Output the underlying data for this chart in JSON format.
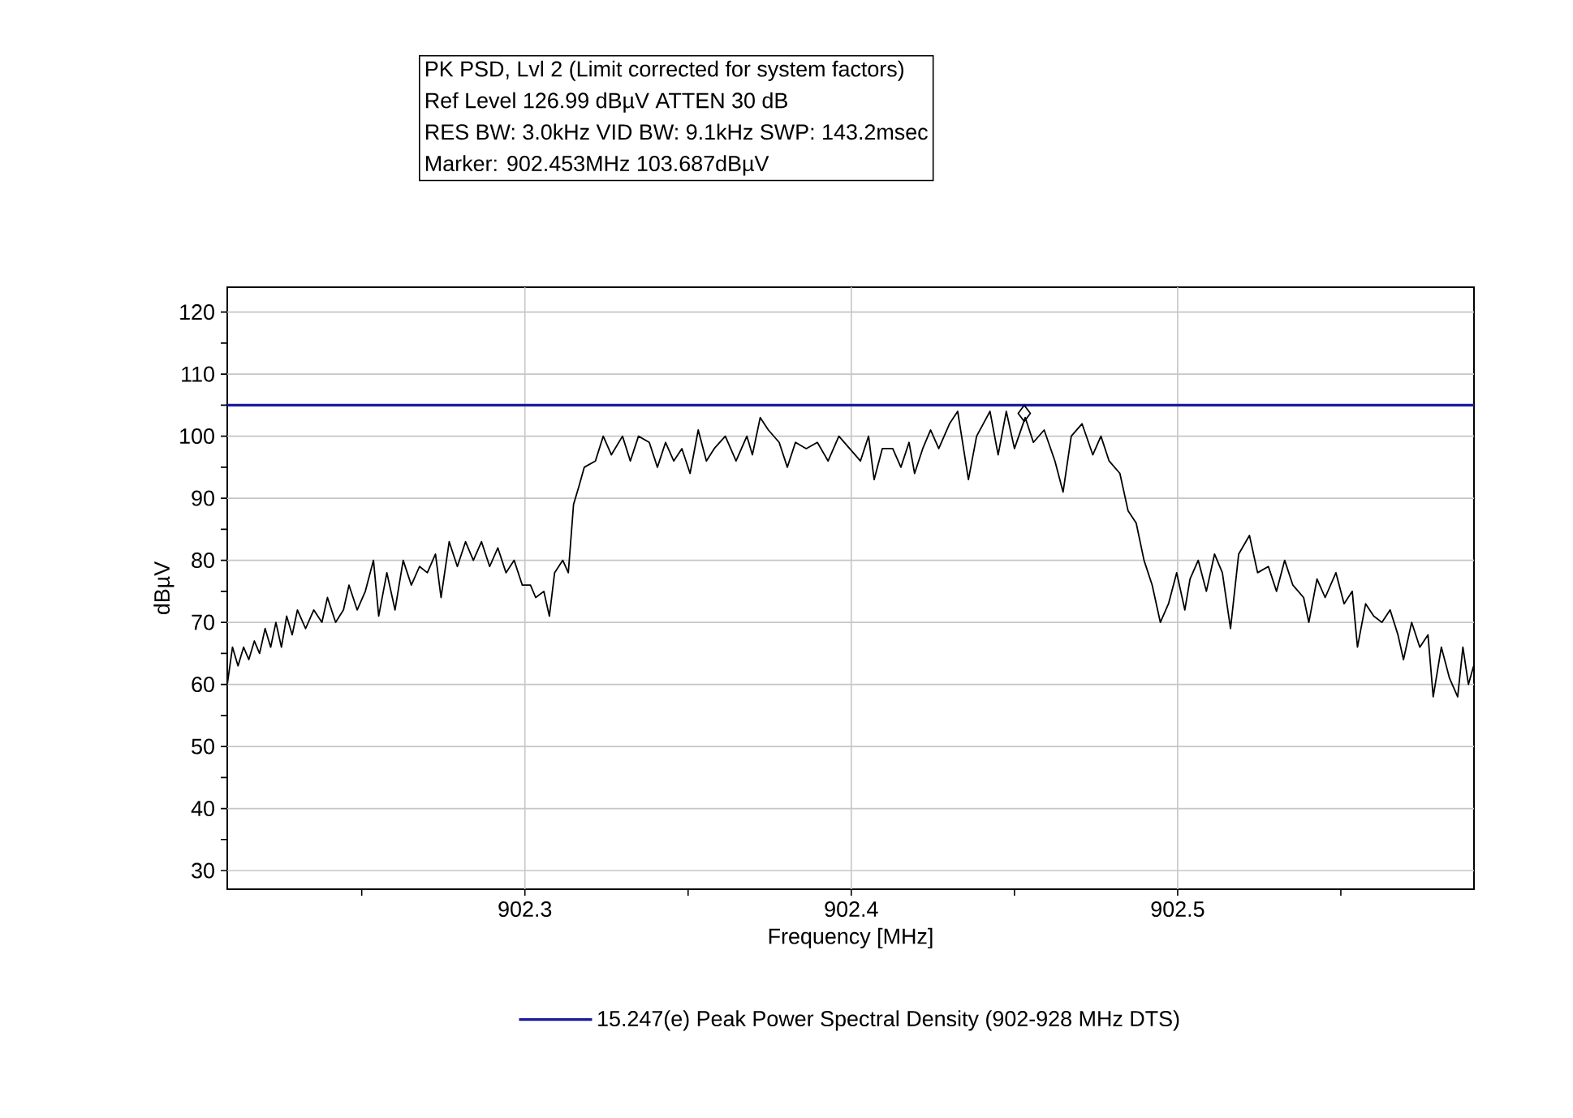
{
  "chart_data": {
    "type": "line",
    "title": "PK PSD, Lvl 2 (Limit corrected for system factors)",
    "annotations": [
      "Ref Level 126.99 dBµV    ATTEN 30 dB",
      "RES BW: 3.0kHz  VID BW: 9.1kHz  SWP: 143.2msec",
      "Marker: 902.453MHz  103.687dBµV"
    ],
    "xlabel": "Frequency [MHz]",
    "ylabel": "dBµV",
    "xlim": [
      902.2088,
      902.5908
    ],
    "ylim": [
      27,
      124
    ],
    "xticks": [
      {
        "value": 902.25,
        "label": null
      },
      902.3,
      {
        "value": 902.35,
        "label": null
      },
      902.4,
      {
        "value": 902.45,
        "label": null
      },
      902.5,
      {
        "value": 902.55,
        "label": null
      }
    ],
    "yticks": [
      30,
      {
        "value": 35,
        "label": null
      },
      40,
      {
        "value": 45,
        "label": null
      },
      50,
      {
        "value": 55,
        "label": null
      },
      60,
      {
        "value": 65,
        "label": null
      },
      70,
      {
        "value": 75,
        "label": null
      },
      80,
      {
        "value": 85,
        "label": null
      },
      90,
      {
        "value": 95,
        "label": null
      },
      100,
      {
        "value": 105,
        "label": null
      },
      110,
      {
        "value": 115,
        "label": null
      },
      120
    ],
    "grid": true,
    "legend": "bottom",
    "ref_lines": [
      {
        "axis": "y",
        "value": 105,
        "label": "15.247(e) Peak Power Spectral Density (902-928 MHz DTS)",
        "color": "#1a1a9c"
      }
    ],
    "series": [
      {
        "type": "scatter",
        "color": "#000000",
        "marker": "diamond",
        "x": [
          902.453
        ],
        "values": [
          103.687
        ]
      },
      {
        "color": "#000000",
        "x": [
          902.2088,
          902.2104,
          902.2121,
          902.2138,
          902.2154,
          902.2171,
          902.2187,
          902.2204,
          902.2221,
          902.2237,
          902.2254,
          902.227,
          902.2287,
          902.2303,
          902.2328,
          902.2353,
          902.2378,
          902.2395,
          902.242,
          902.2444,
          902.2461,
          902.2486,
          902.2511,
          902.2536,
          902.2552,
          902.2577,
          902.2602,
          902.2627,
          902.2652,
          902.2677,
          902.2701,
          902.2726,
          902.2743,
          902.2768,
          902.2793,
          902.2818,
          902.2842,
          902.2867,
          902.2892,
          902.2917,
          902.2942,
          902.2967,
          902.2992,
          902.3017,
          902.3033,
          902.3058,
          902.3075,
          902.3091,
          902.3116,
          902.3133,
          902.3149,
          902.3166,
          902.3182,
          902.3216,
          902.324,
          902.3265,
          902.3299,
          902.3323,
          902.3348,
          902.3381,
          902.3406,
          902.3431,
          902.3456,
          902.3481,
          902.3506,
          902.3531,
          902.3556,
          902.358,
          902.3614,
          902.3647,
          902.368,
          902.3697,
          902.3721,
          902.3746,
          902.3779,
          902.3804,
          902.3829,
          902.3862,
          902.3896,
          902.3929,
          902.3962,
          902.3995,
          902.4028,
          902.4053,
          902.407,
          902.4095,
          902.4127,
          902.4152,
          902.4177,
          902.4194,
          902.4219,
          902.4243,
          902.4268,
          902.4301,
          902.4326,
          902.4359,
          902.4384,
          902.4425,
          902.445,
          902.4475,
          902.45,
          902.4533,
          902.4558,
          902.4591,
          902.4624,
          902.4649,
          902.4674,
          902.4707,
          902.474,
          902.4765,
          902.479,
          902.4823,
          902.4848,
          902.4873,
          902.4897,
          902.4922,
          902.4947,
          902.4972,
          902.4997,
          902.5022,
          902.5038,
          902.5063,
          902.5088,
          902.5113,
          902.5137,
          902.5162,
          902.5187,
          902.522,
          902.5245,
          902.5278,
          902.5303,
          902.5328,
          902.5353,
          902.5386,
          902.5402,
          902.5427,
          902.5452,
          902.5485,
          902.551,
          902.5535,
          902.5551,
          902.5576,
          902.5601,
          902.5626,
          902.5651,
          902.5675,
          902.5692,
          902.5717,
          902.5742,
          902.5767,
          902.5783,
          902.5808,
          902.5833,
          902.5858,
          902.5874,
          902.5891,
          902.5907
        ],
        "values": [
          60,
          66,
          63,
          66,
          64,
          67,
          65,
          69,
          66,
          70,
          66,
          71,
          68,
          72,
          69,
          72,
          70,
          74,
          70,
          72,
          76,
          72,
          75,
          80,
          71,
          78,
          72,
          80,
          76,
          79,
          78,
          81,
          74,
          83,
          79,
          83,
          80,
          83,
          79,
          82,
          78,
          80,
          76,
          76,
          74,
          75,
          71,
          78,
          80,
          78,
          89,
          92,
          95,
          96,
          100,
          97,
          100,
          96,
          100,
          99,
          95,
          99,
          96,
          98,
          94,
          101,
          96,
          98,
          100,
          96,
          100,
          97,
          103,
          101,
          99,
          95,
          99,
          98,
          99,
          96,
          100,
          98,
          96,
          100,
          93,
          98,
          98,
          95,
          99,
          94,
          98,
          101,
          98,
          102,
          104,
          93,
          100,
          104,
          97,
          104,
          98,
          103,
          99,
          101,
          96,
          91,
          100,
          102,
          97,
          100,
          96,
          94,
          88,
          86,
          80,
          76,
          70,
          73,
          78,
          72,
          77,
          80,
          75,
          81,
          78,
          69,
          81,
          84,
          78,
          79,
          75,
          80,
          76,
          74,
          70,
          77,
          74,
          78,
          73,
          75,
          66,
          73,
          71,
          70,
          72,
          68,
          64,
          70,
          66,
          68,
          58,
          66,
          61,
          58,
          66,
          60,
          63
        ]
      }
    ]
  }
}
